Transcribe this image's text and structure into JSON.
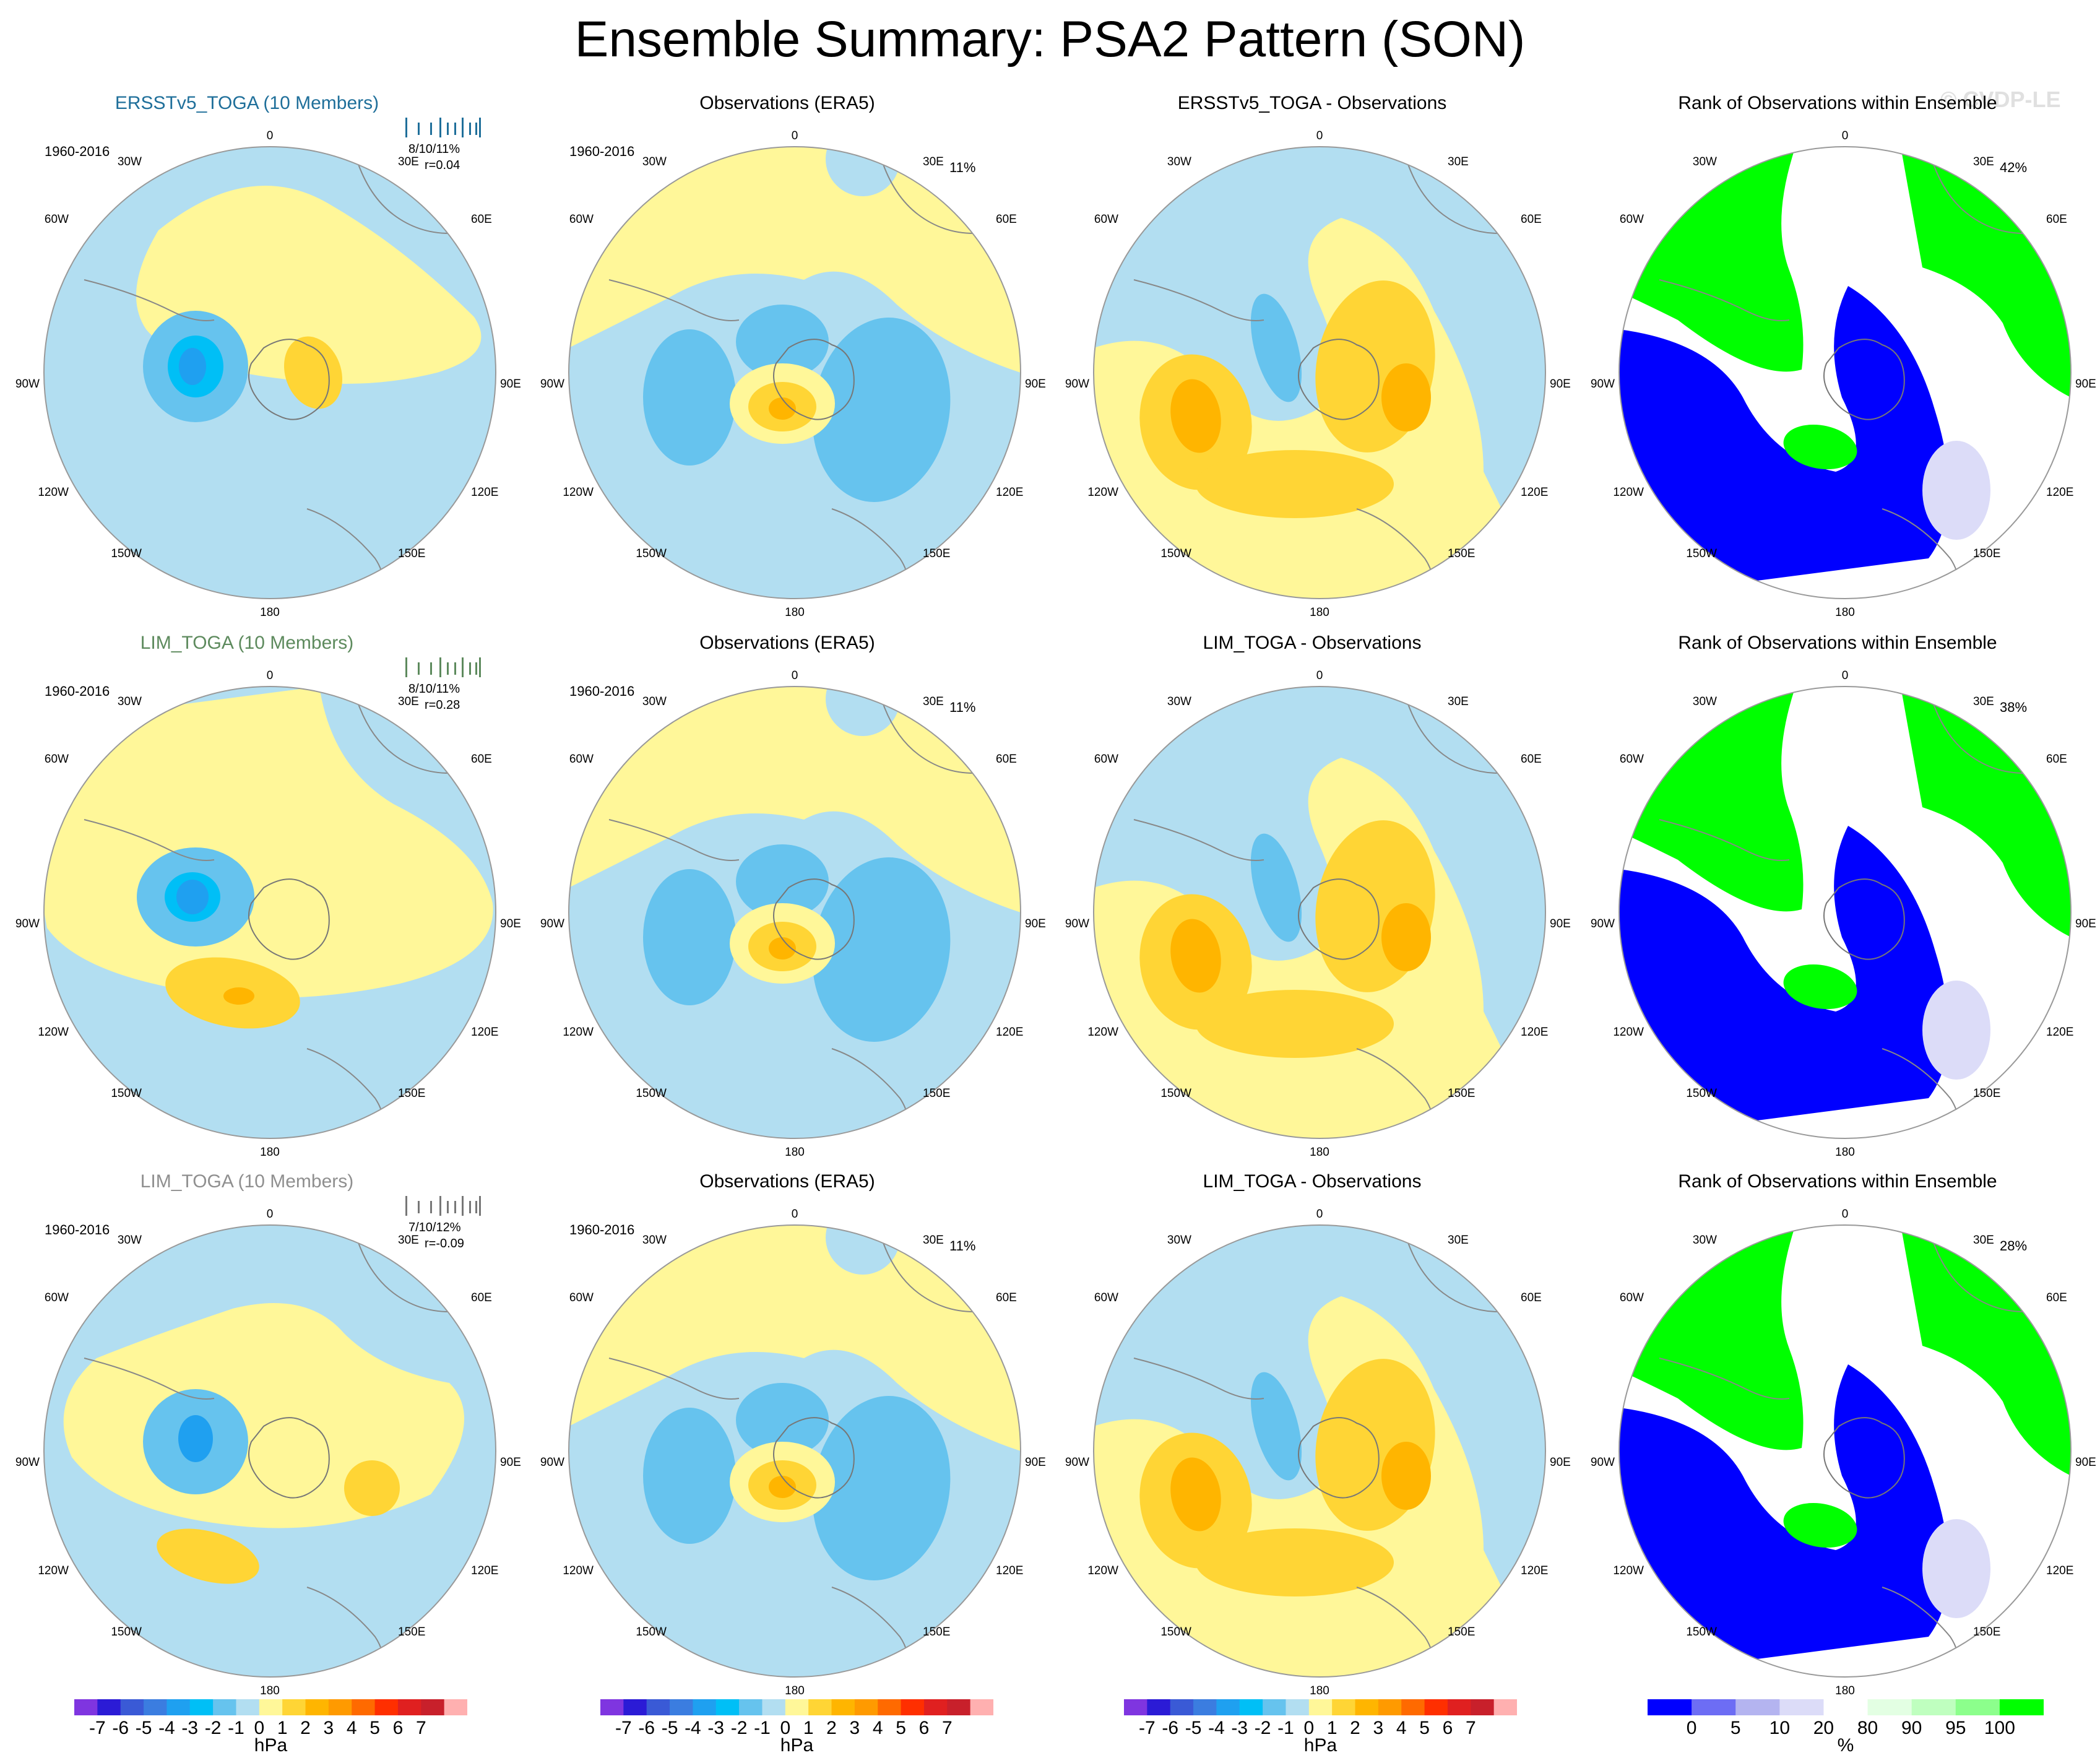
{
  "title": "Ensemble Summary: PSA2 Pattern (SON)",
  "watermark": "© CVDP-LE",
  "longitude_labels": [
    "0",
    "30E",
    "60E",
    "90E",
    "120E",
    "150E",
    "180",
    "150W",
    "120W",
    "90W",
    "60W",
    "30W"
  ],
  "rows": [
    {
      "model": {
        "title": "ERSSTv5_TOGA (10 Members)",
        "title_color": "#1f6f9a",
        "years": "1960-2016",
        "stat1": "8/10/11%",
        "stat2": "r=0.04",
        "bars_color": "#1f6f9a"
      },
      "obs": {
        "title": "Observations (ERA5)",
        "years": "1960-2016",
        "pct": "11%"
      },
      "diff": {
        "title": "ERSSTv5_TOGA - Observations"
      },
      "rank": {
        "title": "Rank of Observations within Ensemble",
        "pct": "42%"
      }
    },
    {
      "model": {
        "title": "LIM_TOGA (10 Members)",
        "title_color": "#5d8a5d",
        "years": "1960-2016",
        "stat1": "8/10/11%",
        "stat2": "r=0.28",
        "bars_color": "#5d8a5d"
      },
      "obs": {
        "title": "Observations (ERA5)",
        "years": "1960-2016",
        "pct": "11%"
      },
      "diff": {
        "title": "LIM_TOGA - Observations"
      },
      "rank": {
        "title": "Rank of Observations within Ensemble",
        "pct": "38%"
      }
    },
    {
      "model": {
        "title": "LIM_TOGA (10 Members)",
        "title_color": "#8f8f8f",
        "years": "1960-2016",
        "stat1": "7/10/12%",
        "stat2": "r=-0.09",
        "bars_color": "#777777"
      },
      "obs": {
        "title": "Observations (ERA5)",
        "years": "1960-2016",
        "pct": "11%"
      },
      "diff": {
        "title": "LIM_TOGA - Observations"
      },
      "rank": {
        "title": "Rank of Observations within Ensemble",
        "pct": "28%"
      }
    }
  ],
  "colorbars": {
    "hpa": {
      "unit": "hPa",
      "tick_labels": [
        "-7",
        "-6",
        "-5",
        "-4",
        "-3",
        "-2",
        "-1",
        "0",
        "1",
        "2",
        "3",
        "4",
        "5",
        "6",
        "7"
      ],
      "colors": [
        "#7f35e0",
        "#2b1bd6",
        "#3a5ad6",
        "#3b7de0",
        "#1fa0f0",
        "#00bff6",
        "#66c3ee",
        "#b2def1",
        "#fff799",
        "#ffd535",
        "#ffb500",
        "#ff9a00",
        "#ff6a00",
        "#ff2f00",
        "#e02020",
        "#c8202b",
        "#ffb0b0"
      ]
    },
    "rank": {
      "unit": "%",
      "tick_labels": [
        "0",
        "5",
        "10",
        "20",
        "80",
        "90",
        "95",
        "100"
      ],
      "colors": [
        "#0000ff",
        "#6d6df4",
        "#b4b4f0",
        "#dcdcf8",
        "#ffffff",
        "#e3ffe3",
        "#bfffbf",
        "#8cff8c",
        "#00ff00"
      ]
    }
  },
  "chart_data": {
    "type": "heatmap",
    "description_fields": "polar-stereographic maps of sea-level pressure pattern (hPa) and ensemble rank (%)",
    "grid": "3 rows x 4 columns",
    "hpa_range": [
      -7,
      7
    ],
    "rank_range": [
      0,
      100
    ]
  }
}
